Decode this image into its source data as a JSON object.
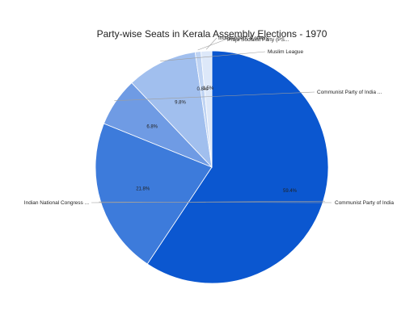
{
  "chart_data": {
    "type": "pie",
    "title": "Party-wise Seats in Kerala Assembly Elections - 1970",
    "slices": [
      {
        "label": "Indian National Congress ...",
        "value": 59.4,
        "pct_label": "59.4%",
        "color": "#0b57d0"
      },
      {
        "label": "Communist Party of India",
        "value": 21.8,
        "pct_label": "21.8%",
        "color": "#3d7bdb"
      },
      {
        "label": "Communist Party of India ...",
        "value": 6.8,
        "pct_label": "6.8%",
        "color": "#6f9be4"
      },
      {
        "label": "Muslim League",
        "value": 9.8,
        "pct_label": "9.8%",
        "color": "#a1bfee"
      },
      {
        "label": "Praja Socialist Party (PS...",
        "value": 0.8,
        "pct_label": "0.8%",
        "color": "#c0d4f3"
      },
      {
        "label": "Independent & others",
        "value": 1.5,
        "pct_label": "1.5%",
        "color": "#dde8f9"
      }
    ],
    "legend": "none"
  }
}
